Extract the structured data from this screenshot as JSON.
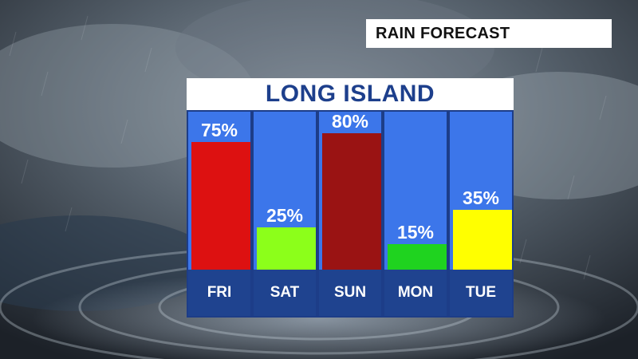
{
  "header": {
    "title": "RAIN FORECAST"
  },
  "chart_data": {
    "type": "bar",
    "title": "LONG ISLAND",
    "categories": [
      "FRI",
      "SAT",
      "SUN",
      "MON",
      "TUE"
    ],
    "values": [
      75,
      25,
      80,
      15,
      35
    ],
    "labels": [
      "75%",
      "25%",
      "80%",
      "15%",
      "35%"
    ],
    "unit": "%",
    "ylim": [
      0,
      100
    ],
    "bar_colors": [
      "#dd1111",
      "#8cff1a",
      "#9a1313",
      "#1fd31f",
      "#ffff00"
    ],
    "column_color": "#3c76ea",
    "band_color": "#1f438f"
  }
}
